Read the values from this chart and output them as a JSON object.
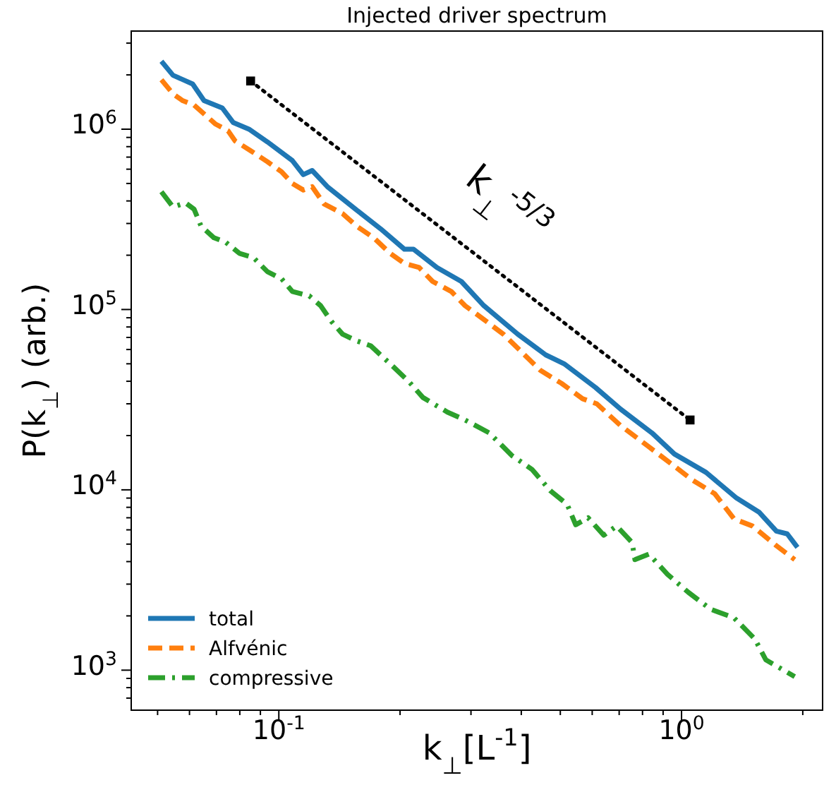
{
  "chart_data": {
    "type": "line",
    "title": "Injected driver spectrum",
    "xlabel": "k$_{⊥}$[L$^{-1}$]",
    "ylabel": "P(k$_{⊥}$) (arb.)",
    "log": "xy",
    "grid": false,
    "legend": "bottom left",
    "xlim": [
      0.043,
      2.24
    ],
    "ylim": [
      600,
      3500000
    ],
    "xticks": [
      {
        "value": 0.05,
        "label": null
      },
      {
        "value": 0.06,
        "label": null
      },
      {
        "value": 0.07,
        "label": null
      },
      {
        "value": 0.08,
        "label": null
      },
      {
        "value": 0.09,
        "label": null
      },
      {
        "value": 0.1,
        "label": "10$^{-1}$"
      },
      {
        "value": 0.2,
        "label": null
      },
      {
        "value": 0.3,
        "label": null
      },
      {
        "value": 0.4,
        "label": null
      },
      {
        "value": 0.5,
        "label": null
      },
      {
        "value": 0.6,
        "label": null
      },
      {
        "value": 0.7,
        "label": null
      },
      {
        "value": 0.8,
        "label": null
      },
      {
        "value": 0.9,
        "label": null
      },
      {
        "value": 1,
        "label": "10$^{0}$"
      },
      {
        "value": 2,
        "label": null
      }
    ],
    "yticks": [
      {
        "value": 700,
        "label": null
      },
      {
        "value": 800,
        "label": null
      },
      {
        "value": 900,
        "label": null
      },
      {
        "value": 1000,
        "label": "10$^{3}$"
      },
      {
        "value": 2000,
        "label": null
      },
      {
        "value": 3000,
        "label": null
      },
      {
        "value": 4000,
        "label": null
      },
      {
        "value": 5000,
        "label": null
      },
      {
        "value": 6000,
        "label": null
      },
      {
        "value": 7000,
        "label": null
      },
      {
        "value": 8000,
        "label": null
      },
      {
        "value": 9000,
        "label": null
      },
      {
        "value": 10000,
        "label": "10$^{4}$"
      },
      {
        "value": 20000,
        "label": null
      },
      {
        "value": 30000,
        "label": null
      },
      {
        "value": 40000,
        "label": null
      },
      {
        "value": 50000,
        "label": null
      },
      {
        "value": 60000,
        "label": null
      },
      {
        "value": 70000,
        "label": null
      },
      {
        "value": 80000,
        "label": null
      },
      {
        "value": 90000,
        "label": null
      },
      {
        "value": 100000,
        "label": "10$^{5}$"
      },
      {
        "value": 200000,
        "label": null
      },
      {
        "value": 300000,
        "label": null
      },
      {
        "value": 400000,
        "label": null
      },
      {
        "value": 500000,
        "label": null
      },
      {
        "value": 600000,
        "label": null
      },
      {
        "value": 700000,
        "label": null
      },
      {
        "value": 800000,
        "label": null
      },
      {
        "value": 900000,
        "label": null
      },
      {
        "value": 1000000,
        "label": "10$^{6}$"
      },
      {
        "value": 2000000,
        "label": null
      },
      {
        "value": 3000000,
        "label": null
      }
    ],
    "series": [
      {
        "name": "total",
        "color": "#1f77b4",
        "line_style": "solid",
        "marker": "none",
        "x": [
          0.0511,
          0.0546,
          0.0611,
          0.0652,
          0.0724,
          0.077,
          0.0843,
          0.0937,
          0.108,
          0.115,
          0.121,
          0.132,
          0.155,
          0.179,
          0.205,
          0.216,
          0.247,
          0.284,
          0.323,
          0.392,
          0.46,
          0.511,
          0.611,
          0.706,
          0.844,
          0.96,
          1.15,
          1.37,
          1.56,
          1.72,
          1.83,
          1.94
        ],
        "values": [
          2380000,
          1990000,
          1780000,
          1440000,
          1310000,
          1090000,
          1000000,
          850000,
          670000,
          560000,
          590000,
          480000,
          360000,
          280000,
          216000,
          216000,
          171000,
          143000,
          105000,
          73000,
          56000,
          50000,
          37000,
          28000,
          20700,
          15800,
          12500,
          9000,
          7500,
          5900,
          5700,
          4800
        ]
      },
      {
        "name": "Alfvénic",
        "color": "#ff7f0e",
        "line_style": "dashed",
        "marker": "none",
        "x": [
          0.0511,
          0.0546,
          0.0577,
          0.0616,
          0.0662,
          0.0695,
          0.0748,
          0.0779,
          0.0851,
          0.0937,
          0.1016,
          0.108,
          0.115,
          0.121,
          0.1295,
          0.144,
          0.156,
          0.172,
          0.189,
          0.205,
          0.223,
          0.241,
          0.268,
          0.29,
          0.323,
          0.361,
          0.395,
          0.446,
          0.503,
          0.568,
          0.616,
          0.706,
          0.83,
          0.953,
          1.06,
          1.21,
          1.35,
          1.5,
          1.72,
          1.91
        ],
        "values": [
          1880000,
          1570000,
          1440000,
          1360000,
          1180000,
          1070000,
          980000,
          860000,
          760000,
          660000,
          580000,
          500000,
          460000,
          480000,
          385000,
          340000,
          290000,
          250000,
          205000,
          180000,
          171000,
          143000,
          126000,
          105000,
          88000,
          73000,
          60000,
          46000,
          39000,
          32000,
          30000,
          22700,
          17300,
          13700,
          11400,
          9500,
          6900,
          6300,
          4900,
          4100
        ]
      },
      {
        "name": "compressive",
        "color": "#2ca02c",
        "line_style": "dashdot",
        "marker": "none",
        "x": [
          0.0511,
          0.0546,
          0.0587,
          0.0616,
          0.0641,
          0.069,
          0.0736,
          0.0798,
          0.0865,
          0.0937,
          0.1016,
          0.108,
          0.119,
          0.127,
          0.135,
          0.144,
          0.156,
          0.169,
          0.189,
          0.21,
          0.228,
          0.262,
          0.29,
          0.333,
          0.379,
          0.425,
          0.472,
          0.52,
          0.546,
          0.586,
          0.641,
          0.69,
          0.754,
          0.766,
          0.83,
          0.923,
          1.04,
          1.18,
          1.35,
          1.52,
          1.62,
          1.91
        ],
        "values": [
          450000,
          370000,
          390000,
          360000,
          290000,
          250000,
          237000,
          205000,
          194000,
          162000,
          148000,
          126000,
          119000,
          105000,
          86000,
          73000,
          67000,
          63000,
          50000,
          40000,
          32500,
          27000,
          24400,
          20700,
          15500,
          13000,
          9900,
          8300,
          6400,
          7000,
          5600,
          6300,
          5100,
          4100,
          4400,
          3400,
          2700,
          2180,
          1950,
          1490,
          1140,
          920
        ]
      },
      {
        "color": "#000000",
        "line_style": "dotted",
        "marker": "square",
        "x": [
          0.0851,
          1.05
        ],
        "values": [
          1850000,
          24400
        ]
      }
    ],
    "annotations": [
      "k$_{⊥}$$^{-5/3}$"
    ]
  }
}
